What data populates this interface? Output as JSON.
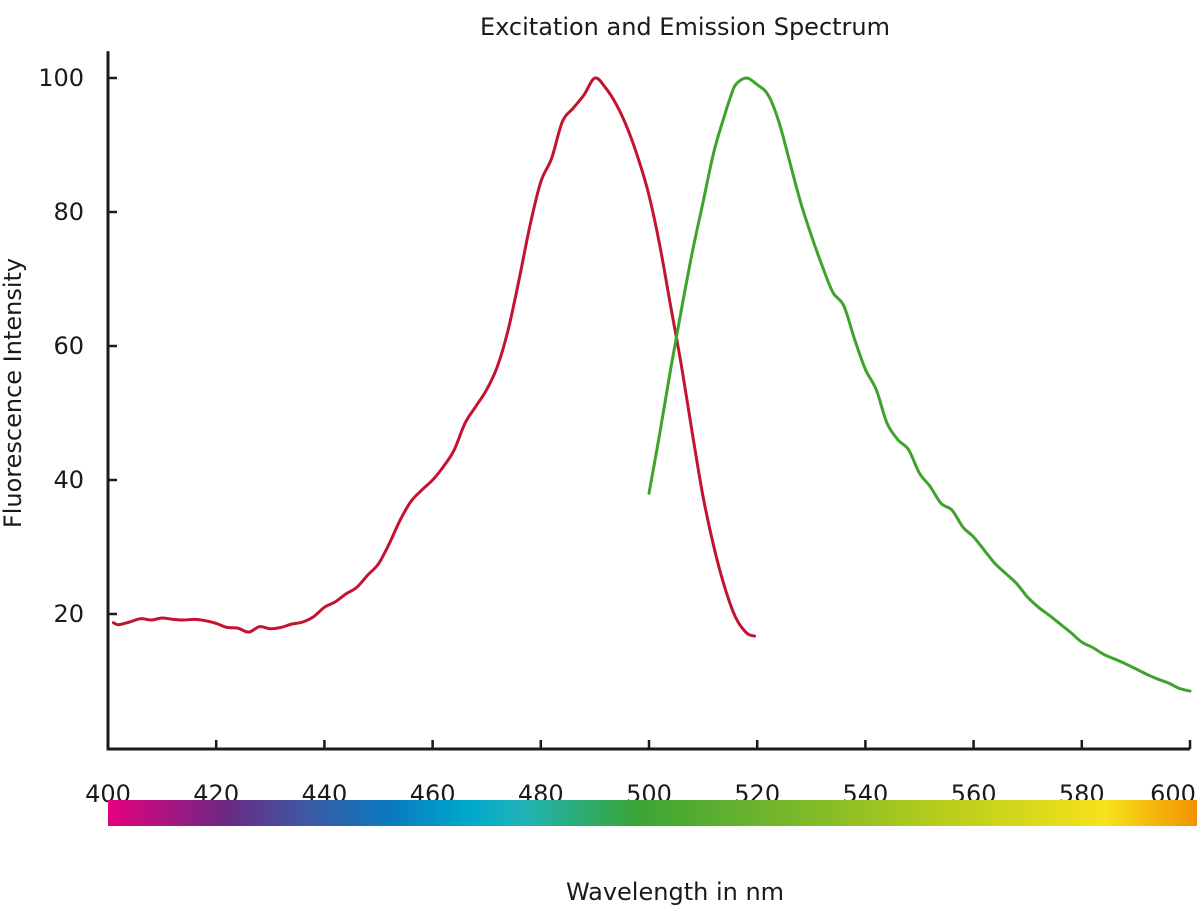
{
  "chart_data": {
    "type": "line",
    "title": "Excitation and Emission Spectrum",
    "xlabel": "Wavelength in nm",
    "ylabel": "Fluorescence Intensity",
    "xlim": [
      400,
      600
    ],
    "ylim": [
      3,
      104
    ],
    "x_ticks": [
      400,
      420,
      440,
      460,
      480,
      500,
      520,
      540,
      560,
      580,
      600
    ],
    "y_ticks": [
      20,
      40,
      60,
      80,
      100
    ],
    "grid": false,
    "legend": "none",
    "spectrum_bar": {
      "range": [
        400,
        600
      ],
      "stops": [
        {
          "x": 400,
          "color": "#e4007f"
        },
        {
          "x": 422,
          "color": "#6a2a83"
        },
        {
          "x": 437,
          "color": "#3b5aa5"
        },
        {
          "x": 452,
          "color": "#0a7abf"
        },
        {
          "x": 466,
          "color": "#00a8cc"
        },
        {
          "x": 476,
          "color": "#1fb3b8"
        },
        {
          "x": 497,
          "color": "#3aa535"
        },
        {
          "x": 527,
          "color": "#7cb82a"
        },
        {
          "x": 552,
          "color": "#b4cc1c"
        },
        {
          "x": 583,
          "color": "#f7e21b"
        },
        {
          "x": 600,
          "color": "#f29200"
        }
      ]
    },
    "series": [
      {
        "color": "#c2132f",
        "x": [
          401,
          402,
          404,
          406,
          408,
          410,
          412,
          414,
          416,
          418,
          420,
          422,
          424,
          426,
          428,
          430,
          432,
          434,
          436,
          438,
          440,
          442,
          444,
          446,
          448,
          450,
          452,
          454,
          456,
          458,
          460,
          462,
          464,
          466,
          468,
          470,
          472,
          474,
          476,
          478,
          480,
          482,
          484,
          486,
          488,
          490,
          492,
          494,
          496,
          498,
          500,
          502,
          504,
          506,
          508,
          510,
          512,
          514,
          516,
          518,
          519.5
        ],
        "values": [
          18.7,
          18.4,
          18.8,
          19.3,
          19.1,
          19.4,
          19.2,
          19.1,
          19.2,
          19.0,
          18.6,
          18.0,
          17.9,
          17.3,
          18.1,
          17.8,
          18.0,
          18.5,
          18.8,
          19.6,
          21.0,
          21.8,
          23.0,
          24.0,
          25.8,
          27.5,
          30.5,
          34.0,
          36.8,
          38.5,
          40.0,
          42.0,
          44.5,
          48.5,
          51.0,
          53.5,
          57.0,
          62.5,
          70.0,
          78.0,
          84.5,
          88.0,
          93.5,
          95.5,
          97.5,
          100.0,
          98.5,
          96.0,
          92.5,
          88.0,
          82.5,
          75.0,
          66.0,
          57.0,
          47.0,
          37.5,
          30.0,
          24.0,
          19.5,
          17.2,
          16.7
        ]
      },
      {
        "color": "#3ea32a",
        "x": [
          500,
          502,
          504,
          506,
          508,
          510,
          512,
          514,
          515,
          516,
          518,
          520,
          522,
          524,
          526,
          528,
          530,
          532,
          534,
          536,
          538,
          540,
          542,
          544,
          546,
          548,
          550,
          552,
          554,
          556,
          558,
          560,
          562,
          564,
          566,
          568,
          570,
          572,
          574,
          576,
          578,
          580,
          582,
          584,
          586,
          588,
          590,
          592,
          594,
          596,
          598,
          600
        ],
        "values": [
          38.0,
          47.0,
          56.5,
          65.5,
          74.0,
          81.5,
          89.0,
          94.5,
          97.0,
          99.0,
          100.0,
          99.0,
          97.5,
          93.5,
          87.5,
          81.5,
          76.5,
          72.0,
          68.0,
          66.0,
          61.0,
          56.5,
          53.5,
          48.5,
          46.0,
          44.5,
          41.0,
          39.0,
          36.5,
          35.5,
          33.0,
          31.5,
          29.5,
          27.5,
          26.0,
          24.5,
          22.5,
          21.0,
          19.8,
          18.5,
          17.2,
          15.8,
          15.0,
          14.0,
          13.3,
          12.6,
          11.8,
          11.0,
          10.3,
          9.7,
          8.9,
          8.5
        ]
      }
    ]
  }
}
